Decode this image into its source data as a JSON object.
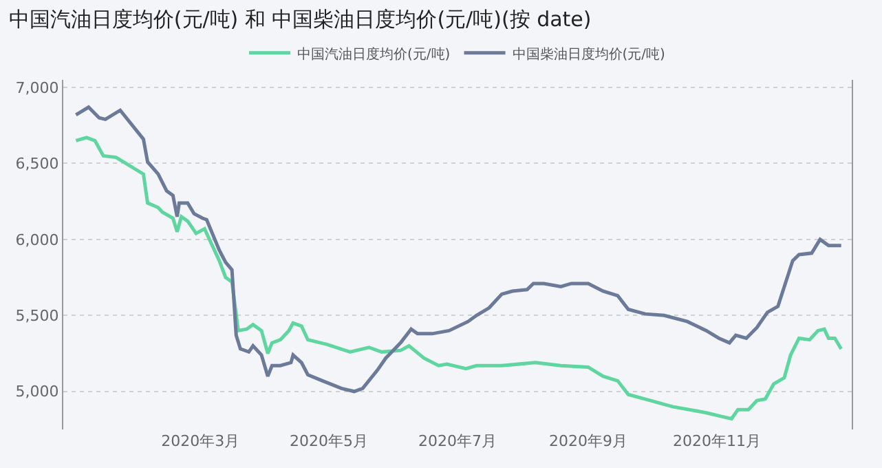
{
  "chart_data": {
    "type": "line",
    "title": "中国汽油日度均价(元/吨) 和 中国柴油日度均价(元/吨)(按 date)",
    "legend": "top",
    "grid": "y",
    "marker": "none",
    "line_style": "solid",
    "xlim": [
      "2019-12-27",
      "2021-01-04"
    ],
    "ylim": [
      4750,
      7050
    ],
    "xticks": [
      {
        "value": "2020-03-01",
        "label": "2020年3月"
      },
      {
        "value": "2020-05-01",
        "label": "2020年5月"
      },
      {
        "value": "2020-07-01",
        "label": "2020年7月"
      },
      {
        "value": "2020-09-01",
        "label": "2020年9月"
      },
      {
        "value": "2020-11-01",
        "label": "2020年11月"
      }
    ],
    "yticks": [
      {
        "value": 5000,
        "label": "5,000"
      },
      {
        "value": 5500,
        "label": "5,500"
      },
      {
        "value": 6000,
        "label": "6,000"
      },
      {
        "value": 6500,
        "label": "6,500"
      },
      {
        "value": 7000,
        "label": "7,000"
      }
    ],
    "series": [
      {
        "name": "中国汽油日度均价(元/吨)",
        "color": "#5fd6a0",
        "x": [
          "2020-01-02",
          "2020-01-07",
          "2020-01-11",
          "2020-01-15",
          "2020-01-21",
          "2020-02-03",
          "2020-02-05",
          "2020-02-10",
          "2020-02-12",
          "2020-02-17",
          "2020-02-19",
          "2020-02-21",
          "2020-02-24",
          "2020-02-28",
          "2020-03-03",
          "2020-03-05",
          "2020-03-10",
          "2020-03-13",
          "2020-03-16",
          "2020-03-19",
          "2020-03-23",
          "2020-03-26",
          "2020-03-30",
          "2020-04-02",
          "2020-04-04",
          "2020-04-08",
          "2020-04-12",
          "2020-04-14",
          "2020-04-18",
          "2020-04-21",
          "2020-04-30",
          "2020-05-11",
          "2020-05-20",
          "2020-05-26",
          "2020-06-04",
          "2020-06-08",
          "2020-06-15",
          "2020-06-22",
          "2020-06-26",
          "2020-07-05",
          "2020-07-10",
          "2020-07-22",
          "2020-08-07",
          "2020-08-19",
          "2020-09-01",
          "2020-09-08",
          "2020-09-15",
          "2020-09-20",
          "2020-09-28",
          "2020-10-11",
          "2020-10-27",
          "2020-11-05",
          "2020-11-08",
          "2020-11-11",
          "2020-11-16",
          "2020-11-20",
          "2020-11-24",
          "2020-11-28",
          "2020-12-03",
          "2020-12-06",
          "2020-12-10",
          "2020-12-15",
          "2020-12-19",
          "2020-12-22",
          "2020-12-24",
          "2020-12-27",
          "2020-12-30"
        ],
        "values": [
          6650,
          6670,
          6650,
          6550,
          6540,
          6430,
          6240,
          6210,
          6180,
          6140,
          6050,
          6150,
          6120,
          6040,
          6070,
          6010,
          5860,
          5750,
          5720,
          5400,
          5410,
          5440,
          5400,
          5250,
          5320,
          5340,
          5400,
          5450,
          5430,
          5340,
          5310,
          5260,
          5290,
          5260,
          5270,
          5300,
          5220,
          5170,
          5180,
          5150,
          5170,
          5170,
          5190,
          5170,
          5160,
          5100,
          5070,
          4980,
          4950,
          4900,
          4860,
          4830,
          4820,
          4880,
          4880,
          4940,
          4950,
          5050,
          5090,
          5240,
          5350,
          5340,
          5400,
          5410,
          5350,
          5350,
          5280
        ]
      },
      {
        "name": "中国柴油日度均价(元/吨)",
        "color": "#6b7a99",
        "x": [
          "2020-01-02",
          "2020-01-08",
          "2020-01-13",
          "2020-01-16",
          "2020-01-23",
          "2020-02-03",
          "2020-02-05",
          "2020-02-10",
          "2020-02-14",
          "2020-02-17",
          "2020-02-19",
          "2020-02-20",
          "2020-02-24",
          "2020-02-27",
          "2020-03-02",
          "2020-03-04",
          "2020-03-10",
          "2020-03-13",
          "2020-03-16",
          "2020-03-18",
          "2020-03-20",
          "2020-03-24",
          "2020-03-26",
          "2020-03-30",
          "2020-04-02",
          "2020-04-04",
          "2020-04-08",
          "2020-04-13",
          "2020-04-14",
          "2020-04-18",
          "2020-04-21",
          "2020-04-28",
          "2020-05-07",
          "2020-05-13",
          "2020-05-17",
          "2020-05-24",
          "2020-05-28",
          "2020-06-04",
          "2020-06-09",
          "2020-06-12",
          "2020-06-19",
          "2020-06-27",
          "2020-07-06",
          "2020-07-10",
          "2020-07-16",
          "2020-07-22",
          "2020-07-27",
          "2020-08-03",
          "2020-08-06",
          "2020-08-11",
          "2020-08-19",
          "2020-08-24",
          "2020-09-01",
          "2020-09-08",
          "2020-09-15",
          "2020-09-20",
          "2020-09-28",
          "2020-10-07",
          "2020-10-18",
          "2020-10-27",
          "2020-11-02",
          "2020-11-07",
          "2020-11-10",
          "2020-11-15",
          "2020-11-20",
          "2020-11-25",
          "2020-11-30",
          "2020-12-07",
          "2020-12-10",
          "2020-12-16",
          "2020-12-20",
          "2020-12-24",
          "2020-12-30"
        ],
        "values": [
          6820,
          6870,
          6800,
          6790,
          6850,
          6660,
          6510,
          6430,
          6320,
          6290,
          6150,
          6240,
          6240,
          6170,
          6140,
          6130,
          5930,
          5850,
          5800,
          5370,
          5280,
          5260,
          5300,
          5240,
          5100,
          5170,
          5170,
          5190,
          5240,
          5190,
          5110,
          5070,
          5020,
          5000,
          5020,
          5140,
          5220,
          5320,
          5410,
          5380,
          5380,
          5400,
          5460,
          5500,
          5550,
          5640,
          5660,
          5670,
          5710,
          5710,
          5690,
          5710,
          5710,
          5660,
          5630,
          5540,
          5510,
          5500,
          5460,
          5400,
          5350,
          5320,
          5370,
          5350,
          5420,
          5520,
          5560,
          5860,
          5900,
          5910,
          6000,
          5960,
          5960
        ]
      }
    ]
  }
}
